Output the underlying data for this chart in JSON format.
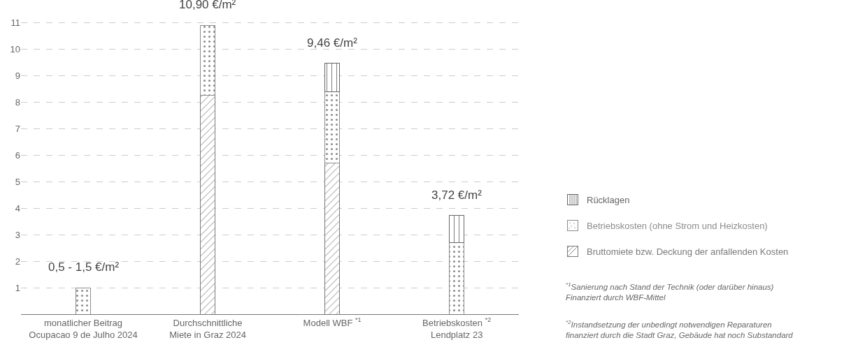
{
  "chart_data": {
    "type": "bar",
    "stacked": true,
    "categories": [
      "monatlicher Beitrag\nOcupacao 9 de Julho 2024",
      "Durchschnittliche\nMiete in Graz 2024",
      "Modell WBF $^{*1}$",
      "Betriebskosten $^{*2}$\nLendplatz 23"
    ],
    "series": [
      {
        "name": "Bruttomiete bzw. Deckung der anfallenden Kosten",
        "color": "#7a7a7a",
        "values": [
          null,
          8.25,
          5.7,
          null
        ]
      },
      {
        "name": "Betriebskosten (ohne Strom und Heizkosten)",
        "color": "#8c8c8c",
        "values": [
          1.0,
          2.65,
          2.7,
          2.7
        ]
      },
      {
        "name": "Rücklagen",
        "color": "#666666",
        "values": [
          null,
          null,
          1.06,
          1.02
        ]
      }
    ],
    "totals": [
      "0,5 - 1,5 €/m²",
      "10,90 €/m²",
      "9,46 €/m²",
      "3,72 €/m²"
    ],
    "ylim": [
      0,
      11.85
    ],
    "yticks": [
      {
        "value": 0,
        "label": null
      },
      1,
      2,
      3,
      4,
      5,
      6,
      7,
      8,
      9,
      10,
      11
    ],
    "grid": "y",
    "legend": "right",
    "annotations": [
      "$^{*1}$Sanierung nach Stand der Technik (oder darüber hinaus)\nFinanziert durch WBF-Mittel",
      "$^{*2}$Instandsetzung der unbedingt notwendigen Reparaturen\nfinanziert durch die Stadt Graz, Gebäude hat noch Substandard"
    ]
  }
}
